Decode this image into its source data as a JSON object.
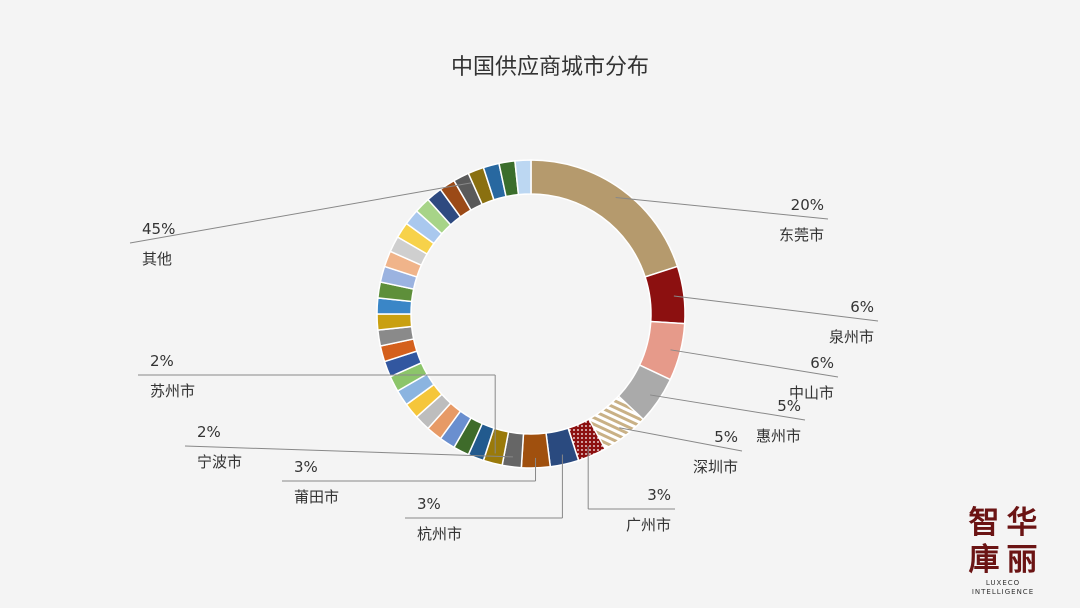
{
  "chart_data": {
    "type": "donut",
    "title": "中国供应商城市分布",
    "labeled_slices": [
      {
        "name": "东莞市",
        "pct_label": "20%",
        "value": 20,
        "color": "#b59a6d"
      },
      {
        "name": "泉州市",
        "pct_label": "6%",
        "value": 6,
        "color": "#8c1010"
      },
      {
        "name": "中山市",
        "pct_label": "6%",
        "value": 6,
        "color": "#e69a8a"
      },
      {
        "name": "惠州市",
        "pct_label": "5%",
        "value": 5,
        "color": "#aaaaaa"
      },
      {
        "name": "深圳市",
        "pct_label": "5%",
        "value": 5,
        "color": "#c9b186",
        "pattern": "stripes"
      },
      {
        "name": "广州市",
        "pct_label": "3%",
        "value": 3,
        "color": "#8c1010",
        "pattern": "dots"
      },
      {
        "name": "杭州市",
        "pct_label": "3%",
        "value": 3,
        "color": "#2a4a7f"
      },
      {
        "name": "莆田市",
        "pct_label": "3%",
        "value": 3,
        "color": "#a0500e"
      },
      {
        "name": "宁波市",
        "pct_label": "2%",
        "value": 2,
        "color": "#666666"
      },
      {
        "name": "苏州市",
        "pct_label": "2%",
        "value": 2,
        "color": "#9a7a0a"
      },
      {
        "name": "其他",
        "pct_label": "45%",
        "value": 45
      }
    ],
    "other_segment_colors": [
      "#225a8e",
      "#3e6b2a",
      "#6a8fcf",
      "#e79a66",
      "#bdbdbd",
      "#f5c63a",
      "#8bb4e0",
      "#8cc56a",
      "#3257a0",
      "#d4601d",
      "#8a8a8a",
      "#c9a010",
      "#3a86c7",
      "#5e8f3a",
      "#9bb3e0",
      "#f0b48a",
      "#cfcfcf",
      "#f7d24a",
      "#a9c8ee",
      "#a7d488",
      "#2e4a80",
      "#9b4a17",
      "#5a5a5a",
      "#8a7010",
      "#2868a0",
      "#3b6e2c",
      "#bcd7f2"
    ]
  },
  "logo": {
    "chars": [
      "智",
      "华",
      "庫",
      "丽"
    ],
    "line1": "LUXECO",
    "line2": "INTELLIGENCE"
  }
}
